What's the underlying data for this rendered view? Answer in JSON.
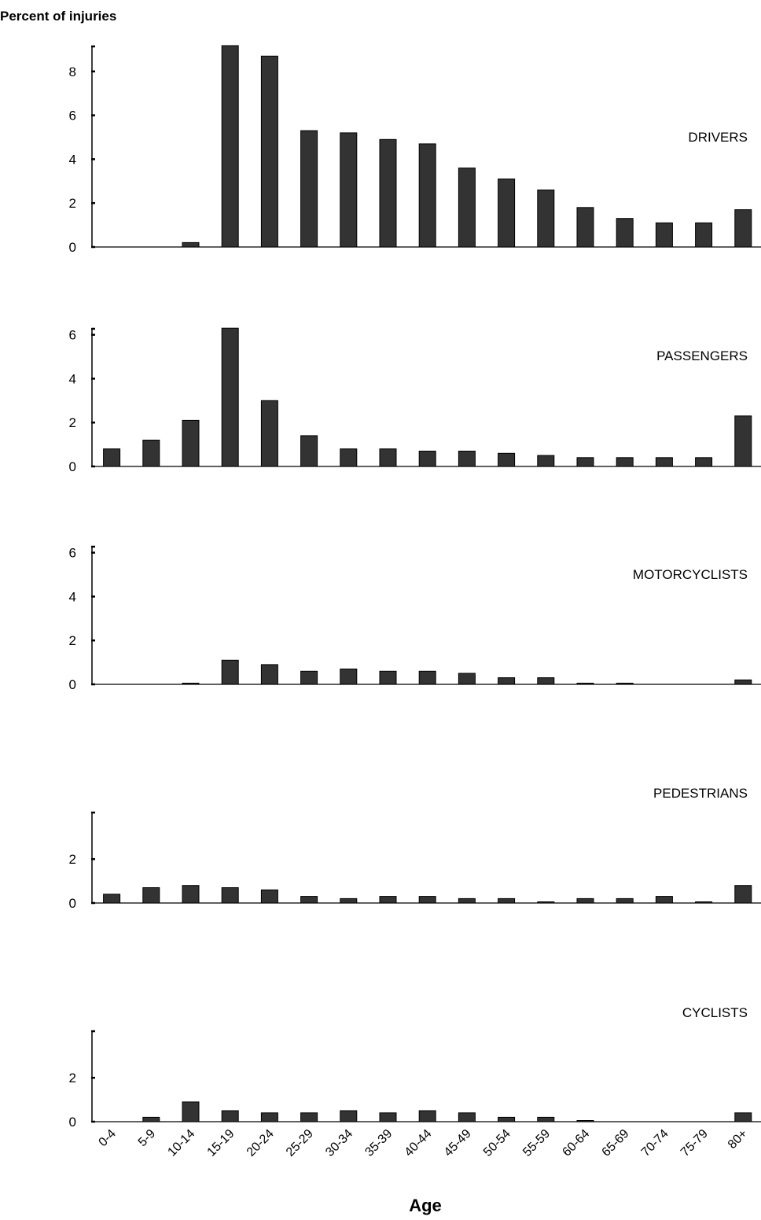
{
  "chart_data": {
    "type": "bar",
    "title": "",
    "ylabel": "Percent of injuries",
    "xlabel": "Age",
    "categories": [
      "0-4",
      "5-9",
      "10-14",
      "15-19",
      "20-24",
      "25-29",
      "30-34",
      "35-39",
      "40-44",
      "45-49",
      "50-54",
      "55-59",
      "60-64",
      "65-69",
      "70-74",
      "75-79",
      "80+"
    ],
    "bar_color": "#333333",
    "grid": false,
    "panels": [
      {
        "name": "DRIVERS",
        "ylim": [
          0,
          9.0
        ],
        "yticks": [
          0,
          2,
          4,
          6,
          8
        ],
        "values": [
          0,
          0,
          0.2,
          9.2,
          8.7,
          5.3,
          5.2,
          4.9,
          4.7,
          3.6,
          3.1,
          2.6,
          1.8,
          1.3,
          1.1,
          1.1,
          1.7
        ]
      },
      {
        "name": "PASSENGERS",
        "ylim": [
          0,
          6.2
        ],
        "yticks": [
          0,
          2,
          4,
          6
        ],
        "values": [
          0.8,
          1.2,
          2.1,
          6.3,
          3.0,
          1.4,
          0.8,
          0.8,
          0.7,
          0.7,
          0.6,
          0.5,
          0.4,
          0.4,
          0.4,
          0.4,
          2.3
        ]
      },
      {
        "name": "MOTORCYCLISTS",
        "ylim": [
          0,
          6.0
        ],
        "yticks": [
          0,
          2,
          4,
          6
        ],
        "values": [
          0,
          0,
          0.05,
          1.1,
          0.9,
          0.6,
          0.7,
          0.6,
          0.6,
          0.5,
          0.3,
          0.3,
          0.05,
          0.05,
          0,
          0,
          0.2
        ]
      },
      {
        "name": "PEDESTRIANS",
        "ylim": [
          0,
          4.0
        ],
        "yticks": [
          0,
          2
        ],
        "values": [
          0.4,
          0.7,
          0.8,
          0.7,
          0.6,
          0.3,
          0.2,
          0.3,
          0.3,
          0.2,
          0.2,
          0.05,
          0.2,
          0.2,
          0.3,
          0.05,
          0.8
        ]
      },
      {
        "name": "CYCLISTS",
        "ylim": [
          0,
          4.0
        ],
        "yticks": [
          0,
          2
        ],
        "values": [
          0,
          0.2,
          0.9,
          0.5,
          0.4,
          0.4,
          0.5,
          0.4,
          0.5,
          0.4,
          0.2,
          0.2,
          0.05,
          0,
          0,
          0,
          0.4
        ]
      }
    ]
  }
}
